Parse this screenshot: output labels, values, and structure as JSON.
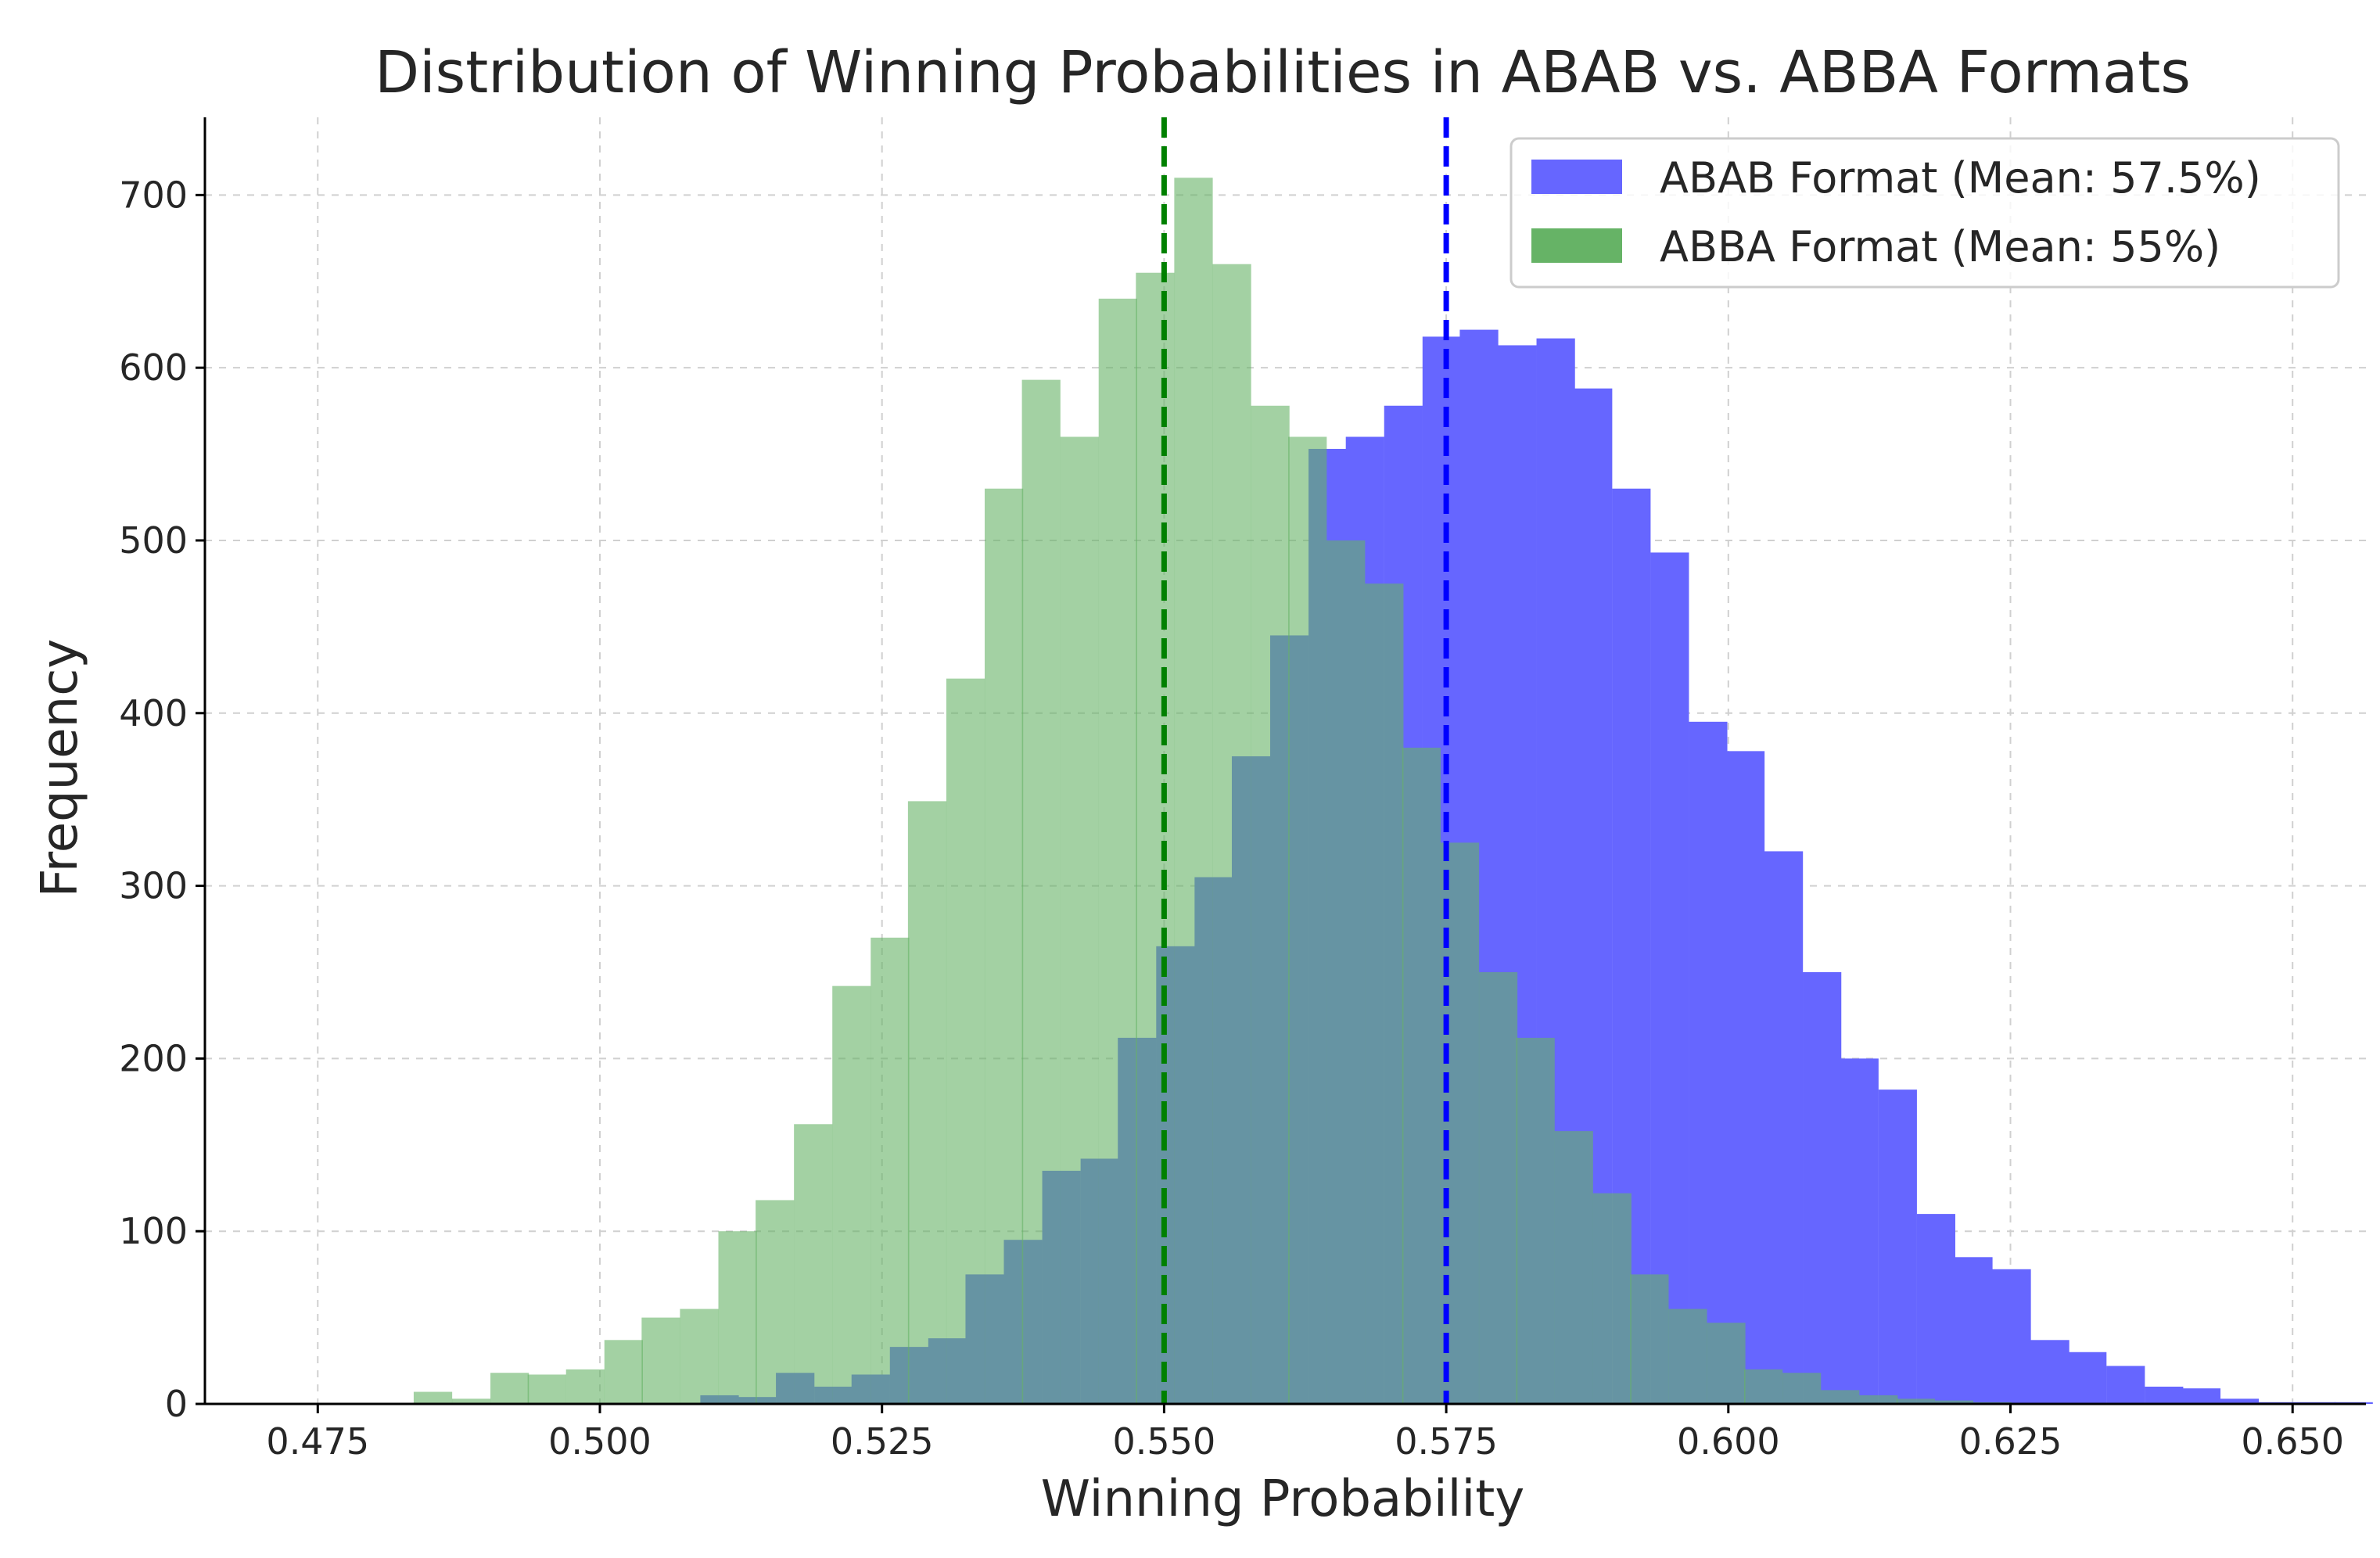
{
  "chart_data": {
    "type": "histogram",
    "title": "Distribution of Winning Probabilities in ABAB vs. ABBA Formats",
    "xlabel": "Winning Probability",
    "ylabel": "Frequency",
    "xlim": [
      0.465,
      0.6565
    ],
    "ylim": [
      0,
      745
    ],
    "xticks": [
      0.475,
      0.5,
      0.525,
      0.55,
      0.575,
      0.6,
      0.625,
      0.65
    ],
    "xtick_labels": [
      "0.475",
      "0.500",
      "0.525",
      "0.550",
      "0.575",
      "0.600",
      "0.625",
      "0.650"
    ],
    "yticks": [
      0,
      100,
      200,
      300,
      400,
      500,
      600,
      700
    ],
    "ytick_labels": [
      "0",
      "100",
      "200",
      "300",
      "400",
      "500",
      "600",
      "700"
    ],
    "grid": true,
    "legend_position": "top-right",
    "series": [
      {
        "name": "ABAB Format (Mean: 57.5%)",
        "color": "#6666ff",
        "mean": 0.575,
        "mean_line_color": "#0000ff",
        "bin_width": 0.00337,
        "bins": [
          [
            0.4886,
            0
          ],
          [
            0.492,
            0
          ],
          [
            0.4954,
            0
          ],
          [
            0.4987,
            0
          ],
          [
            0.5021,
            0
          ],
          [
            0.5055,
            0
          ],
          [
            0.5089,
            5
          ],
          [
            0.5122,
            4
          ],
          [
            0.5156,
            18
          ],
          [
            0.519,
            10
          ],
          [
            0.5223,
            17
          ],
          [
            0.5257,
            33
          ],
          [
            0.5291,
            38
          ],
          [
            0.5324,
            75
          ],
          [
            0.5358,
            95
          ],
          [
            0.5392,
            135
          ],
          [
            0.5426,
            142
          ],
          [
            0.5459,
            212
          ],
          [
            0.5493,
            265
          ],
          [
            0.5527,
            305
          ],
          [
            0.556,
            375
          ],
          [
            0.5594,
            445
          ],
          [
            0.5628,
            553
          ],
          [
            0.5661,
            560
          ],
          [
            0.5695,
            578
          ],
          [
            0.5729,
            618
          ],
          [
            0.5762,
            622
          ],
          [
            0.5796,
            613
          ],
          [
            0.583,
            617
          ],
          [
            0.5863,
            588
          ],
          [
            0.5897,
            530
          ],
          [
            0.5931,
            493
          ],
          [
            0.5965,
            395
          ],
          [
            0.5998,
            378
          ],
          [
            0.6032,
            320
          ],
          [
            0.6066,
            250
          ],
          [
            0.6099,
            200
          ],
          [
            0.6133,
            182
          ],
          [
            0.6167,
            110
          ],
          [
            0.62,
            85
          ],
          [
            0.6234,
            78
          ],
          [
            0.6268,
            37
          ],
          [
            0.6301,
            30
          ],
          [
            0.6335,
            22
          ],
          [
            0.6369,
            10
          ],
          [
            0.6402,
            9
          ],
          [
            0.6436,
            3
          ],
          [
            0.647,
            1
          ],
          [
            0.6504,
            1
          ],
          [
            0.6537,
            1
          ]
        ]
      },
      {
        "name": "ABBA Format (Mean: 55%)",
        "color": "#66b366",
        "mean": 0.55,
        "mean_line_color": "#008000",
        "bin_width": 0.00337,
        "bins": [
          [
            0.4835,
            7
          ],
          [
            0.4869,
            3
          ],
          [
            0.4903,
            18
          ],
          [
            0.4936,
            17
          ],
          [
            0.497,
            20
          ],
          [
            0.5004,
            37
          ],
          [
            0.5037,
            50
          ],
          [
            0.5071,
            55
          ],
          [
            0.5105,
            100
          ],
          [
            0.5138,
            118
          ],
          [
            0.5172,
            162
          ],
          [
            0.5206,
            242
          ],
          [
            0.524,
            270
          ],
          [
            0.5273,
            349
          ],
          [
            0.5307,
            420
          ],
          [
            0.5341,
            530
          ],
          [
            0.5374,
            593
          ],
          [
            0.5408,
            560
          ],
          [
            0.5442,
            640
          ],
          [
            0.5475,
            655
          ],
          [
            0.5509,
            710
          ],
          [
            0.5543,
            660
          ],
          [
            0.5577,
            578
          ],
          [
            0.561,
            560
          ],
          [
            0.5644,
            500
          ],
          [
            0.5678,
            475
          ],
          [
            0.5711,
            380
          ],
          [
            0.5745,
            325
          ],
          [
            0.5779,
            250
          ],
          [
            0.5812,
            212
          ],
          [
            0.5846,
            158
          ],
          [
            0.588,
            122
          ],
          [
            0.5913,
            75
          ],
          [
            0.5947,
            55
          ],
          [
            0.5981,
            47
          ],
          [
            0.6014,
            20
          ],
          [
            0.6048,
            18
          ],
          [
            0.6082,
            8
          ],
          [
            0.6116,
            5
          ],
          [
            0.6149,
            3
          ],
          [
            0.6183,
            2
          ],
          [
            0.6217,
            1
          ]
        ]
      }
    ]
  }
}
